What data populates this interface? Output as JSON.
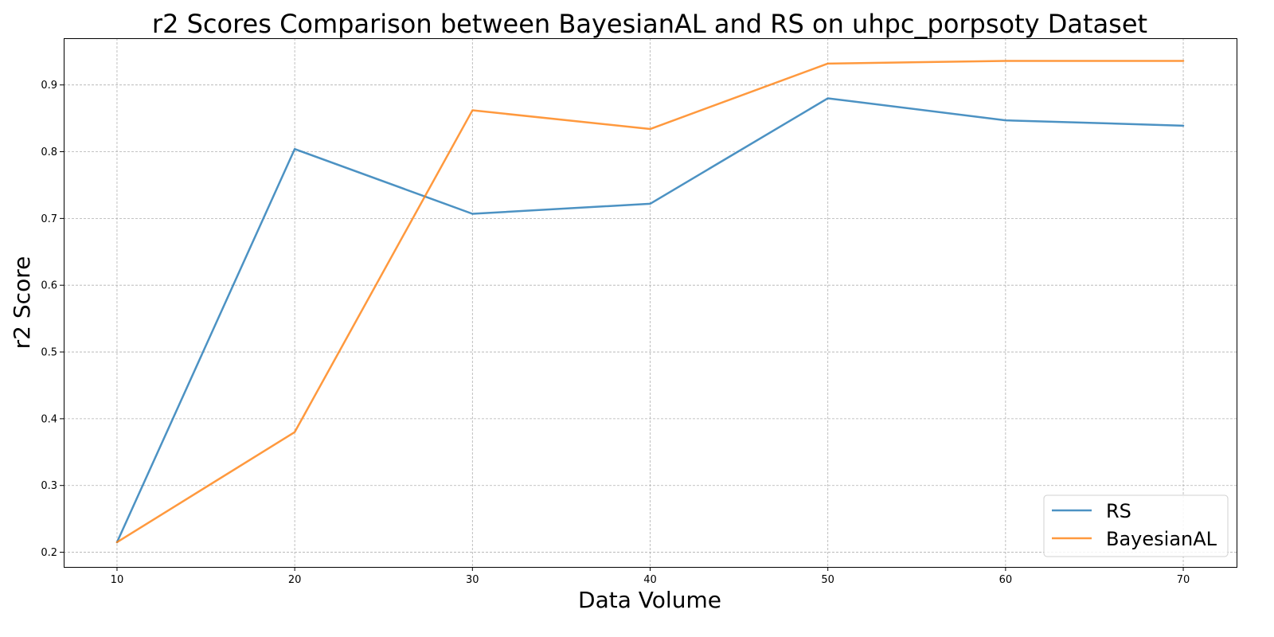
{
  "chart_data": {
    "type": "line",
    "title": "r2 Scores Comparison between BayesianAL and RS on uhpc_porpsoty Dataset",
    "xlabel": "Data Volume",
    "ylabel": "r2 Score",
    "x": [
      10,
      20,
      30,
      40,
      50,
      60,
      70
    ],
    "xlim": [
      7,
      73
    ],
    "ylim": [
      0.178,
      0.97
    ],
    "xticks": [
      10,
      20,
      30,
      40,
      50,
      60,
      70
    ],
    "yticks": [
      0.2,
      0.3,
      0.4,
      0.5,
      0.6,
      0.7,
      0.8,
      0.9
    ],
    "grid": true,
    "legend_position": "bottom-right",
    "series": [
      {
        "name": "RS",
        "color": "#1f77b4",
        "values": [
          0.215,
          0.804,
          0.707,
          0.722,
          0.88,
          0.847,
          0.839
        ]
      },
      {
        "name": "BayesianAL",
        "color": "#ff7f0e",
        "values": [
          0.215,
          0.38,
          0.862,
          0.834,
          0.932,
          0.936,
          0.936
        ]
      }
    ]
  }
}
